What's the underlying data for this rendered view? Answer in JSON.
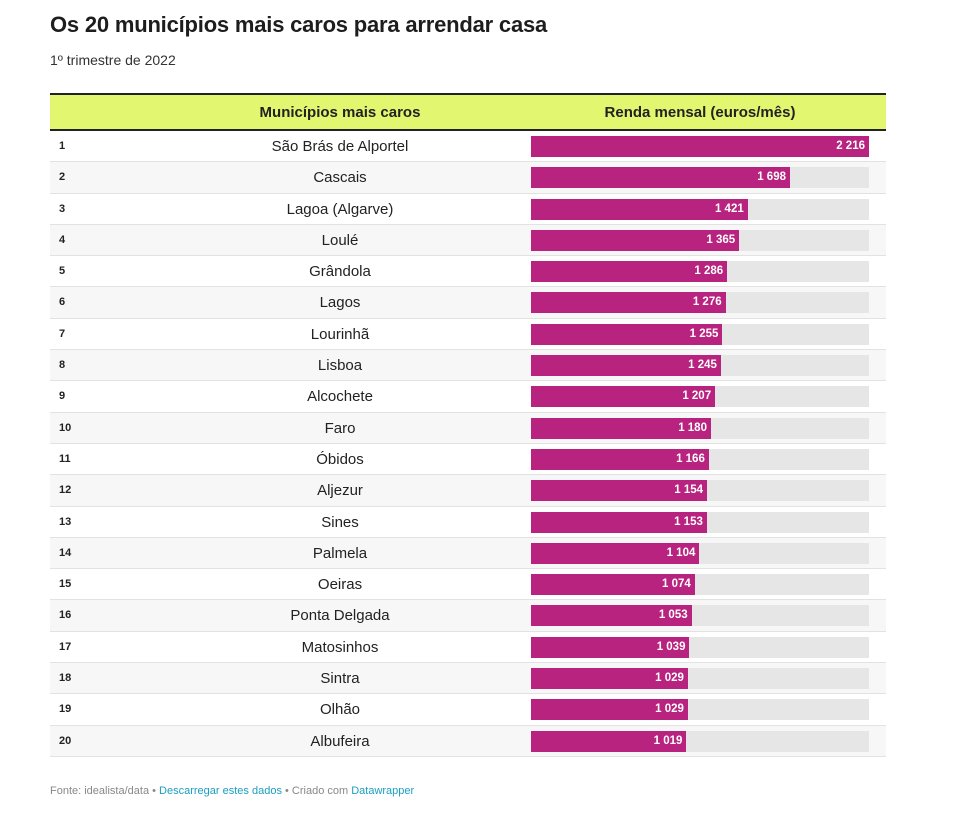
{
  "header": {
    "title": "Os 20 municípios mais caros para arrendar casa",
    "subtitle": "1º trimestre de 2022"
  },
  "table": {
    "col_name": "Municípios mais caros",
    "col_value": "Renda mensal (euros/mês)"
  },
  "footer": {
    "source": "Fonte: idealista/data",
    "sep1": " • ",
    "download": "Descarregar estes dados",
    "sep2": " • Criado com ",
    "tool": "Datawrapper"
  },
  "chart_data": {
    "type": "bar",
    "orientation": "horizontal",
    "title": "Os 20 municípios mais caros para arrendar casa",
    "subtitle": "1º trimestre de 2022",
    "xlim": [
      0,
      2216
    ],
    "bar_color": "#b8237f",
    "track_color": "#e6e6e6",
    "header_color": "#e3f66f",
    "rows": [
      {
        "rank": "1",
        "name": "São Brás de Alportel",
        "value": 2216,
        "label": "2 216"
      },
      {
        "rank": "2",
        "name": "Cascais",
        "value": 1698,
        "label": "1 698"
      },
      {
        "rank": "3",
        "name": "Lagoa (Algarve)",
        "value": 1421,
        "label": "1 421"
      },
      {
        "rank": "4",
        "name": "Loulé",
        "value": 1365,
        "label": "1 365"
      },
      {
        "rank": "5",
        "name": "Grândola",
        "value": 1286,
        "label": "1 286"
      },
      {
        "rank": "6",
        "name": "Lagos",
        "value": 1276,
        "label": "1 276"
      },
      {
        "rank": "7",
        "name": "Lourinhã",
        "value": 1255,
        "label": "1 255"
      },
      {
        "rank": "8",
        "name": "Lisboa",
        "value": 1245,
        "label": "1 245"
      },
      {
        "rank": "9",
        "name": "Alcochete",
        "value": 1207,
        "label": "1 207"
      },
      {
        "rank": "10",
        "name": "Faro",
        "value": 1180,
        "label": "1 180"
      },
      {
        "rank": "11",
        "name": "Óbidos",
        "value": 1166,
        "label": "1 166"
      },
      {
        "rank": "12",
        "name": "Aljezur",
        "value": 1154,
        "label": "1 154"
      },
      {
        "rank": "13",
        "name": "Sines",
        "value": 1153,
        "label": "1 153"
      },
      {
        "rank": "14",
        "name": "Palmela",
        "value": 1104,
        "label": "1 104"
      },
      {
        "rank": "15",
        "name": "Oeiras",
        "value": 1074,
        "label": "1 074"
      },
      {
        "rank": "16",
        "name": "Ponta Delgada",
        "value": 1053,
        "label": "1 053"
      },
      {
        "rank": "17",
        "name": "Matosinhos",
        "value": 1039,
        "label": "1 039"
      },
      {
        "rank": "18",
        "name": "Sintra",
        "value": 1029,
        "label": "1 029"
      },
      {
        "rank": "19",
        "name": "Olhão",
        "value": 1029,
        "label": "1 029"
      },
      {
        "rank": "20",
        "name": "Albufeira",
        "value": 1019,
        "label": "1 019"
      }
    ]
  }
}
